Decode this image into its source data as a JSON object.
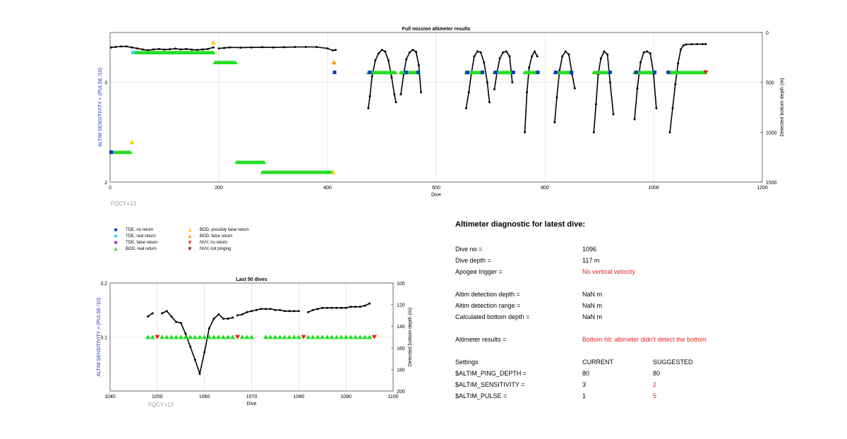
{
  "chart_data": [
    {
      "type": "line",
      "title": "Full mission altimeter results",
      "xlabel": "Dive",
      "ylabel": "ALTIM SENSITIVITY + (PULSE /10)",
      "y2label": "Detected bottom depth (m)",
      "xlim": [
        0,
        1200
      ],
      "ylim": [
        2,
        3.5
      ],
      "y2lim": [
        1500,
        0
      ],
      "x_ticks": [
        "0",
        "200",
        "400",
        "600",
        "800",
        "1000",
        "1200"
      ],
      "y_ticks": [
        "2",
        "3"
      ],
      "y2_ticks": [
        "0",
        "500",
        "1000",
        "1500"
      ],
      "grid": true,
      "annotation": "FQCY=13",
      "series": [
        {
          "name": "Detected bottom depth",
          "axis": "right",
          "color": "#000000",
          "segments": [
            {
              "x": [
                2,
                10,
                20,
                30,
                40,
                50,
                60,
                70,
                80,
                90,
                100,
                110,
                120,
                130,
                140,
                150,
                160,
                170,
                180,
                190
              ],
              "y": [
                150,
                145,
                140,
                140,
                150,
                160,
                170,
                178,
                170,
                165,
                172,
                168,
                162,
                170,
                165,
                172,
                175,
                170,
                165,
                150
              ]
            },
            {
              "x": [
                200,
                210,
                220,
                240,
                260,
                280,
                300,
                320,
                340,
                360,
                380,
                400,
                410,
                415
              ],
              "y": [
                160,
                155,
                150,
                152,
                150,
                148,
                150,
                148,
                146,
                145,
                146,
                160,
                180,
                175
              ]
            },
            {
              "x": [
                475,
                478,
                482,
                488,
                494,
                500,
                506,
                512,
                518,
                523,
                526
              ],
              "y": [
                760,
                640,
                440,
                280,
                210,
                175,
                190,
                280,
                450,
                620,
                700
              ]
            },
            {
              "x": [
                535,
                540,
                545,
                551,
                557,
                563,
                568,
                572
              ],
              "y": [
                620,
                420,
                270,
                200,
                175,
                195,
                330,
                600
              ]
            },
            {
              "x": [
                655,
                660,
                665,
                670,
                676,
                682,
                688,
                694,
                698
              ],
              "y": [
                760,
                600,
                400,
                240,
                190,
                200,
                300,
                500,
                700
              ]
            },
            {
              "x": [
                707,
                712,
                717,
                723,
                729,
                735,
                740
              ],
              "y": [
                570,
                400,
                260,
                200,
                190,
                240,
                500
              ]
            },
            {
              "x": [
                763,
                767,
                771,
                776,
                781,
                786
              ],
              "y": [
                1000,
                600,
                350,
                240,
                190,
                240
              ]
            },
            {
              "x": [
                818,
                822,
                827,
                832,
                838,
                844,
                850,
                855
              ],
              "y": [
                900,
                650,
                380,
                240,
                190,
                220,
                420,
                560
              ]
            },
            {
              "x": [
                890,
                894,
                898,
                903,
                909,
                915,
                920,
                926
              ],
              "y": [
                1000,
                720,
                420,
                260,
                190,
                220,
                500,
                820
              ]
            },
            {
              "x": [
                965,
                970,
                976,
                982,
                988,
                994,
                1000,
                1005
              ],
              "y": [
                870,
                560,
                300,
                200,
                190,
                210,
                420,
                760
              ]
            },
            {
              "x": [
                1030,
                1035,
                1040,
                1045,
                1050,
                1055,
                1060,
                1070,
                1080,
                1090,
                1096
              ],
              "y": [
                1000,
                760,
                520,
                310,
                170,
                130,
                120,
                118,
                117,
                117,
                117
              ]
            }
          ]
        },
        {
          "name": "BOD, real return",
          "axis": "left",
          "color": "#22dd22",
          "bands": [
            {
              "x_start": 2,
              "x_end": 38,
              "y": 2.3
            },
            {
              "x_start": 45,
              "x_end": 190,
              "y": 3.3
            },
            {
              "x_start": 193,
              "x_end": 232,
              "y": 3.2
            },
            {
              "x_start": 233,
              "x_end": 283,
              "y": 2.2
            },
            {
              "x_start": 280,
              "x_end": 412,
              "y": 2.1
            },
            {
              "x_start": 475,
              "x_end": 525,
              "y": 3.1
            },
            {
              "x_start": 535,
              "x_end": 568,
              "y": 3.1
            },
            {
              "x_start": 655,
              "x_end": 685,
              "y": 3.1
            },
            {
              "x_start": 707,
              "x_end": 740,
              "y": 3.1
            },
            {
              "x_start": 763,
              "x_end": 785,
              "y": 3.1
            },
            {
              "x_start": 818,
              "x_end": 850,
              "y": 3.1
            },
            {
              "x_start": 890,
              "x_end": 915,
              "y": 3.1
            },
            {
              "x_start": 965,
              "x_end": 1000,
              "y": 3.1
            },
            {
              "x_start": 1030,
              "x_end": 1096,
              "y": 3.1
            }
          ]
        },
        {
          "name": "BOD, possibly false return",
          "axis": "left",
          "color": "#ffcc00",
          "points": [
            {
              "x": 40,
              "y": 2.4
            },
            {
              "x": 190,
              "y": 3.4
            },
            {
              "x": 410,
              "y": 2.1
            }
          ]
        },
        {
          "name": "BOD, false return",
          "axis": "left",
          "color": "#ff9900",
          "points": [
            {
              "x": 412,
              "y": 3.2
            }
          ]
        },
        {
          "name": "TDE, no return",
          "axis": "left",
          "color": "#1133cc",
          "points": [
            {
              "x": 2,
              "y": 2.3
            },
            {
              "x": 413,
              "y": 3.1
            },
            {
              "x": 478,
              "y": 3.1
            },
            {
              "x": 545,
              "y": 3.1
            },
            {
              "x": 567,
              "y": 3.1
            },
            {
              "x": 657,
              "y": 3.1
            },
            {
              "x": 685,
              "y": 3.1
            },
            {
              "x": 709,
              "y": 3.1
            },
            {
              "x": 742,
              "y": 3.1
            },
            {
              "x": 787,
              "y": 3.1
            },
            {
              "x": 820,
              "y": 3.1
            },
            {
              "x": 849,
              "y": 3.1
            },
            {
              "x": 920,
              "y": 3.1
            },
            {
              "x": 968,
              "y": 3.1
            },
            {
              "x": 1002,
              "y": 3.1
            },
            {
              "x": 1027,
              "y": 3.1
            }
          ]
        },
        {
          "name": "TDE, real return",
          "axis": "left",
          "color": "#33ddee",
          "points": [
            {
              "x": 42,
              "y": 3.3
            }
          ]
        },
        {
          "name": "NVV, no return",
          "axis": "left",
          "color": "#e8231c",
          "points": [
            {
              "x": 1096,
              "y": 3.1
            }
          ]
        }
      ]
    },
    {
      "type": "line",
      "title": "Last 50 dives",
      "xlabel": "Dive",
      "ylabel": "ALTIM SENSITIVITY + (PULSE /10)",
      "y2label": "Detected bottom depth (m)",
      "xlim": [
        1040,
        1100
      ],
      "ylim": [
        3,
        3.2
      ],
      "y2lim": [
        200,
        100
      ],
      "x_ticks": [
        "1040",
        "1050",
        "1060",
        "1070",
        "1080",
        "1090",
        "1100"
      ],
      "y_ticks": [
        "3.1",
        "3.2"
      ],
      "y2_ticks": [
        "100",
        "120",
        "140",
        "160",
        "180",
        "200"
      ],
      "grid": true,
      "annotation": "FQCY=13",
      "series": [
        {
          "name": "Detected bottom depth",
          "axis": "right",
          "color": "#000000",
          "segments": [
            {
              "x": [
                1048,
                1049
              ],
              "y": [
                131,
                128
              ]
            },
            {
              "x": [
                1051,
                1052,
                1053,
                1054,
                1055,
                1056,
                1057,
                1058,
                1059,
                1060,
                1061,
                1062,
                1063,
                1064,
                1065,
                1066
              ],
              "y": [
                128,
                126,
                131,
                136,
                137,
                147,
                159,
                171,
                184,
                164,
                142,
                133,
                129,
                133,
                133,
                132
              ]
            },
            {
              "x": [
                1067,
                1068,
                1069,
                1070,
                1071,
                1072,
                1073,
                1074,
                1075,
                1076,
                1077,
                1078,
                1079,
                1080
              ],
              "y": [
                130,
                129,
                127,
                126,
                125,
                124,
                124,
                124,
                125,
                125,
                126,
                126,
                126,
                126
              ]
            },
            {
              "x": [
                1082,
                1083,
                1084,
                1085,
                1086,
                1087,
                1088,
                1089,
                1090,
                1091,
                1092,
                1093,
                1094,
                1095
              ],
              "y": [
                127,
                125,
                124,
                123,
                123,
                123,
                123,
                123,
                123,
                122,
                122,
                122,
                121,
                119
              ]
            }
          ]
        },
        {
          "name": "BOD, real return",
          "axis": "left",
          "color": "#22dd22",
          "x": [
            1048,
            1049,
            1051,
            1052,
            1053,
            1054,
            1055,
            1056,
            1057,
            1058,
            1059,
            1060,
            1061,
            1062,
            1063,
            1064,
            1065,
            1066,
            1068,
            1069,
            1070,
            1073,
            1074,
            1075,
            1076,
            1077,
            1078,
            1079,
            1080,
            1082,
            1083,
            1084,
            1085,
            1086,
            1087,
            1088,
            1089,
            1090,
            1091,
            1092,
            1093,
            1094,
            1095
          ],
          "y": 3.1
        },
        {
          "name": "NVV, no return",
          "axis": "left",
          "color": "#e8231c",
          "x": [
            1050,
            1067,
            1081,
            1096
          ],
          "y": 3.1
        }
      ]
    }
  ],
  "legend": [
    {
      "label": "TDE, no return",
      "symbol": "■",
      "color": "#1133cc"
    },
    {
      "label": "BOD, possibly false return",
      "symbol": "▲",
      "color": "#ffcc00"
    },
    {
      "label": "TDE, real return",
      "symbol": "■",
      "color": "#33ddee"
    },
    {
      "label": "BOD, false return",
      "symbol": "▲",
      "color": "#ff9900"
    },
    {
      "label": "TDE, false return",
      "symbol": "■",
      "color": "#9933cc"
    },
    {
      "label": "NVV, no return",
      "symbol": "▼",
      "color": "#e8231c"
    },
    {
      "label": "BOD, real return",
      "symbol": "▲",
      "color": "#22dd22"
    },
    {
      "label": "NVV, not pinging",
      "symbol": "▼",
      "color": "#7a1010"
    }
  ],
  "diagnostic": {
    "title": "Altimeter diagnostic for latest dive:",
    "rows": [
      {
        "label": "Dive no =",
        "value": "1096"
      },
      {
        "label": "Dive depth =",
        "value": "117 m"
      },
      {
        "label": "Apogee trigger =",
        "value": "No vertical velocity",
        "red": true
      },
      {
        "label": "Altim detection depth =",
        "value": "NaN m"
      },
      {
        "label": "Altim detection range =",
        "value": "NaN m"
      },
      {
        "label": "Calculated bottom depth =",
        "value": "NaN m"
      },
      {
        "label": "Altimeter results =",
        "value": "Bottom hit: altimeter didn't detect the bottom",
        "red": true
      }
    ],
    "settings_header": {
      "label": "Settings",
      "current": "CURRENT",
      "suggested": "SUGGESTED"
    },
    "settings": [
      {
        "label": "$ALTIM_PING_DEPTH =",
        "current": "80",
        "suggested": "80",
        "changed": false
      },
      {
        "label": "$ALTIM_SENSITIVITY =",
        "current": "3",
        "suggested": "2",
        "changed": true
      },
      {
        "label": "$ALTIM_PULSE =",
        "current": "1",
        "suggested": "5",
        "changed": true
      }
    ]
  }
}
